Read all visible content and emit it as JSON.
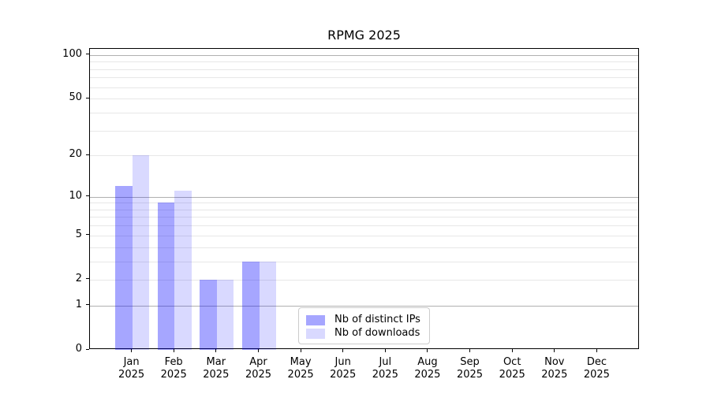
{
  "title": "RPMG 2025",
  "chart_data": {
    "type": "bar",
    "title": "RPMG 2025",
    "xlabel": "",
    "ylabel": "",
    "yscale": "symlog",
    "ylim": [
      0,
      110
    ],
    "grid": true,
    "legend_position": "lower-center-inside",
    "categories": [
      "Jan 2025",
      "Feb 2025",
      "Mar 2025",
      "Apr 2025",
      "May 2025",
      "Jun 2025",
      "Jul 2025",
      "Aug 2025",
      "Sep 2025",
      "Oct 2025",
      "Nov 2025",
      "Dec 2025"
    ],
    "series": [
      {
        "name": "Nb of distinct IPs",
        "color": "rgba(0,0,255,0.35)",
        "values": [
          12,
          9,
          2,
          3,
          0,
          0,
          0,
          0,
          0,
          0,
          0,
          0
        ]
      },
      {
        "name": "Nb of downloads",
        "color": "rgba(0,0,255,0.15)",
        "values": [
          20,
          11,
          2,
          3,
          0,
          0,
          0,
          0,
          0,
          0,
          0,
          0
        ]
      }
    ],
    "ytick_values": [
      0,
      1,
      2,
      5,
      10,
      20,
      50,
      100
    ],
    "ytick_labels": [
      "0",
      "1",
      "2",
      "5",
      "10",
      "20",
      "50",
      "100"
    ],
    "major_gridline_values": [
      1,
      10,
      100
    ],
    "minor_gridline_values": [
      2,
      3,
      4,
      5,
      6,
      7,
      8,
      9,
      20,
      30,
      40,
      50,
      60,
      70,
      80,
      90
    ]
  },
  "colors": {
    "series1": "rgba(0,0,255,0.35)",
    "series2": "rgba(0,0,255,0.15)",
    "major_grid": "#b0b0b0",
    "minor_grid": "#e7e7e7",
    "axis": "#000000",
    "text": "#000000",
    "legend_border": "#cccccc",
    "background": "#ffffff"
  },
  "legend": {
    "items": [
      {
        "label": "Nb of distinct IPs"
      },
      {
        "label": "Nb of downloads"
      }
    ]
  }
}
